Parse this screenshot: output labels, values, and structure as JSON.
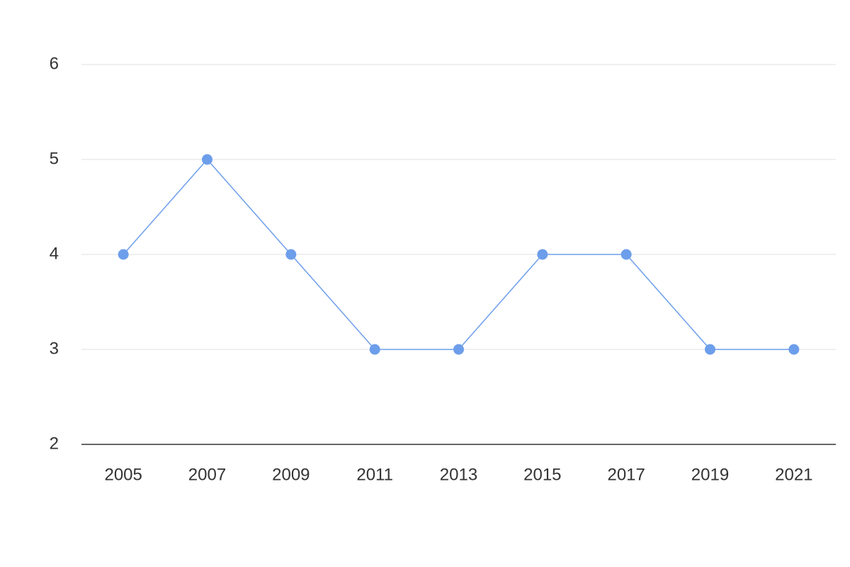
{
  "chart_data": {
    "type": "line",
    "categories": [
      "2005",
      "2007",
      "2009",
      "2011",
      "2013",
      "2015",
      "2017",
      "2019",
      "2021"
    ],
    "values": [
      4,
      5,
      4,
      3,
      3,
      4,
      4,
      3,
      3
    ],
    "color": "#6d9eeb",
    "ylim": [
      2,
      6
    ],
    "yticks": [
      2,
      3,
      4,
      5,
      6
    ],
    "grid": true
  }
}
